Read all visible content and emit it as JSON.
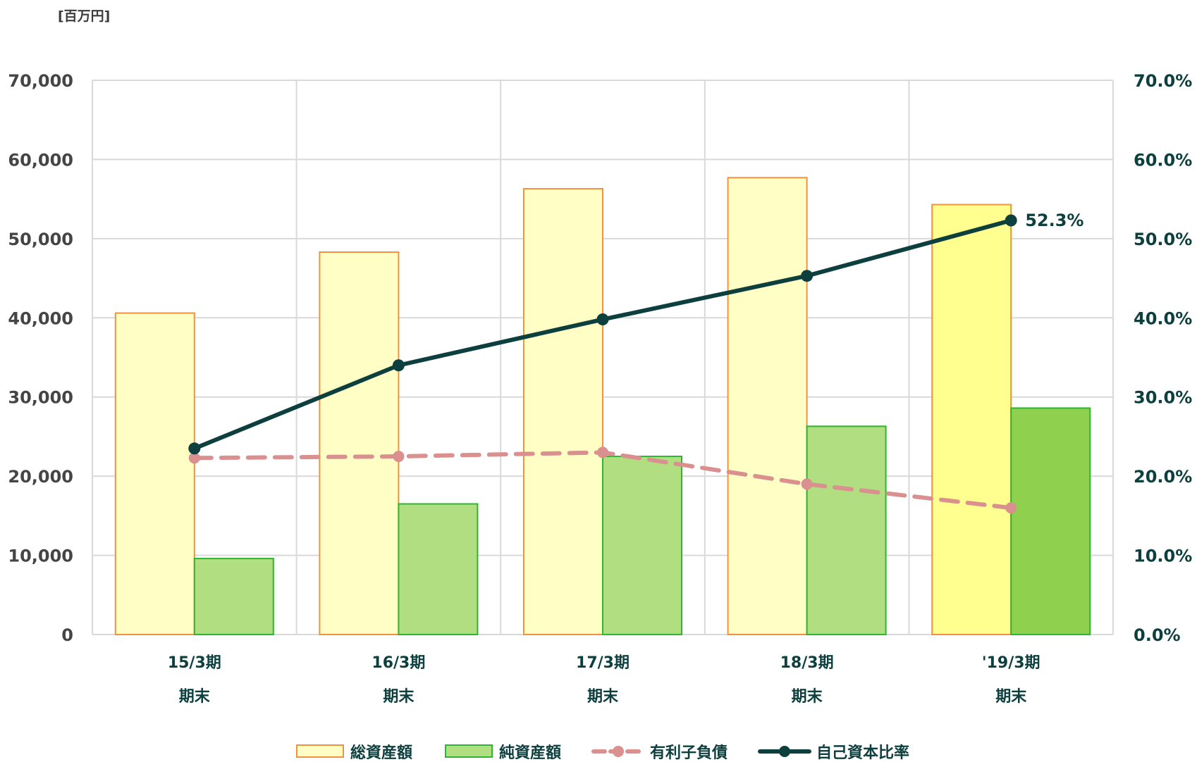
{
  "chart_data": {
    "type": "bar",
    "unit_label": "[百万円]",
    "categories": [
      [
        "15/3期",
        "期末"
      ],
      [
        "16/3期",
        "期末"
      ],
      [
        "17/3期",
        "期末"
      ],
      [
        "18/3期",
        "期末"
      ],
      [
        "'19/3期",
        "期末"
      ]
    ],
    "y_left": {
      "ylim": [
        0,
        70000
      ],
      "ticks": [
        0,
        10000,
        20000,
        30000,
        40000,
        50000,
        60000,
        70000
      ],
      "tick_labels": [
        "0",
        "10,000",
        "20,000",
        "30,000",
        "40,000",
        "50,000",
        "60,000",
        "70,000"
      ]
    },
    "y_right": {
      "ylim": [
        0,
        70
      ],
      "ticks": [
        0,
        10,
        20,
        30,
        40,
        50,
        60,
        70
      ],
      "tick_labels": [
        "0.0%",
        "10.0%",
        "20.0%",
        "30.0%",
        "40.0%",
        "50.0%",
        "60.0%",
        "70.0%"
      ]
    },
    "grid": true,
    "legend_position": "bottom",
    "series": [
      {
        "name": "総資産額",
        "kind": "bar",
        "axis": "left",
        "values": [
          40600,
          48300,
          56300,
          57700,
          54300
        ],
        "color": "#ffffc5",
        "highlight_color": "#ffff8f",
        "border": "#f0933c"
      },
      {
        "name": "純資産額",
        "kind": "bar",
        "axis": "left",
        "values": [
          9600,
          16500,
          22500,
          26300,
          28600
        ],
        "color": "#b0de80",
        "highlight_color": "#8fd14f",
        "border": "#2fb52f"
      },
      {
        "name": "有利子負債",
        "kind": "line",
        "axis": "left",
        "style": "dashed",
        "values": [
          22300,
          22500,
          23000,
          19000,
          16000
        ],
        "color": "#d9908f"
      },
      {
        "name": "自己資本比率",
        "kind": "line",
        "axis": "right",
        "values": [
          23.5,
          34.0,
          39.8,
          45.3,
          52.3
        ],
        "color": "#0d3f3f"
      }
    ],
    "annotations": [
      {
        "series": "自己資本比率",
        "index": 4,
        "text": "52.3%"
      }
    ],
    "highlight_index": 4
  }
}
